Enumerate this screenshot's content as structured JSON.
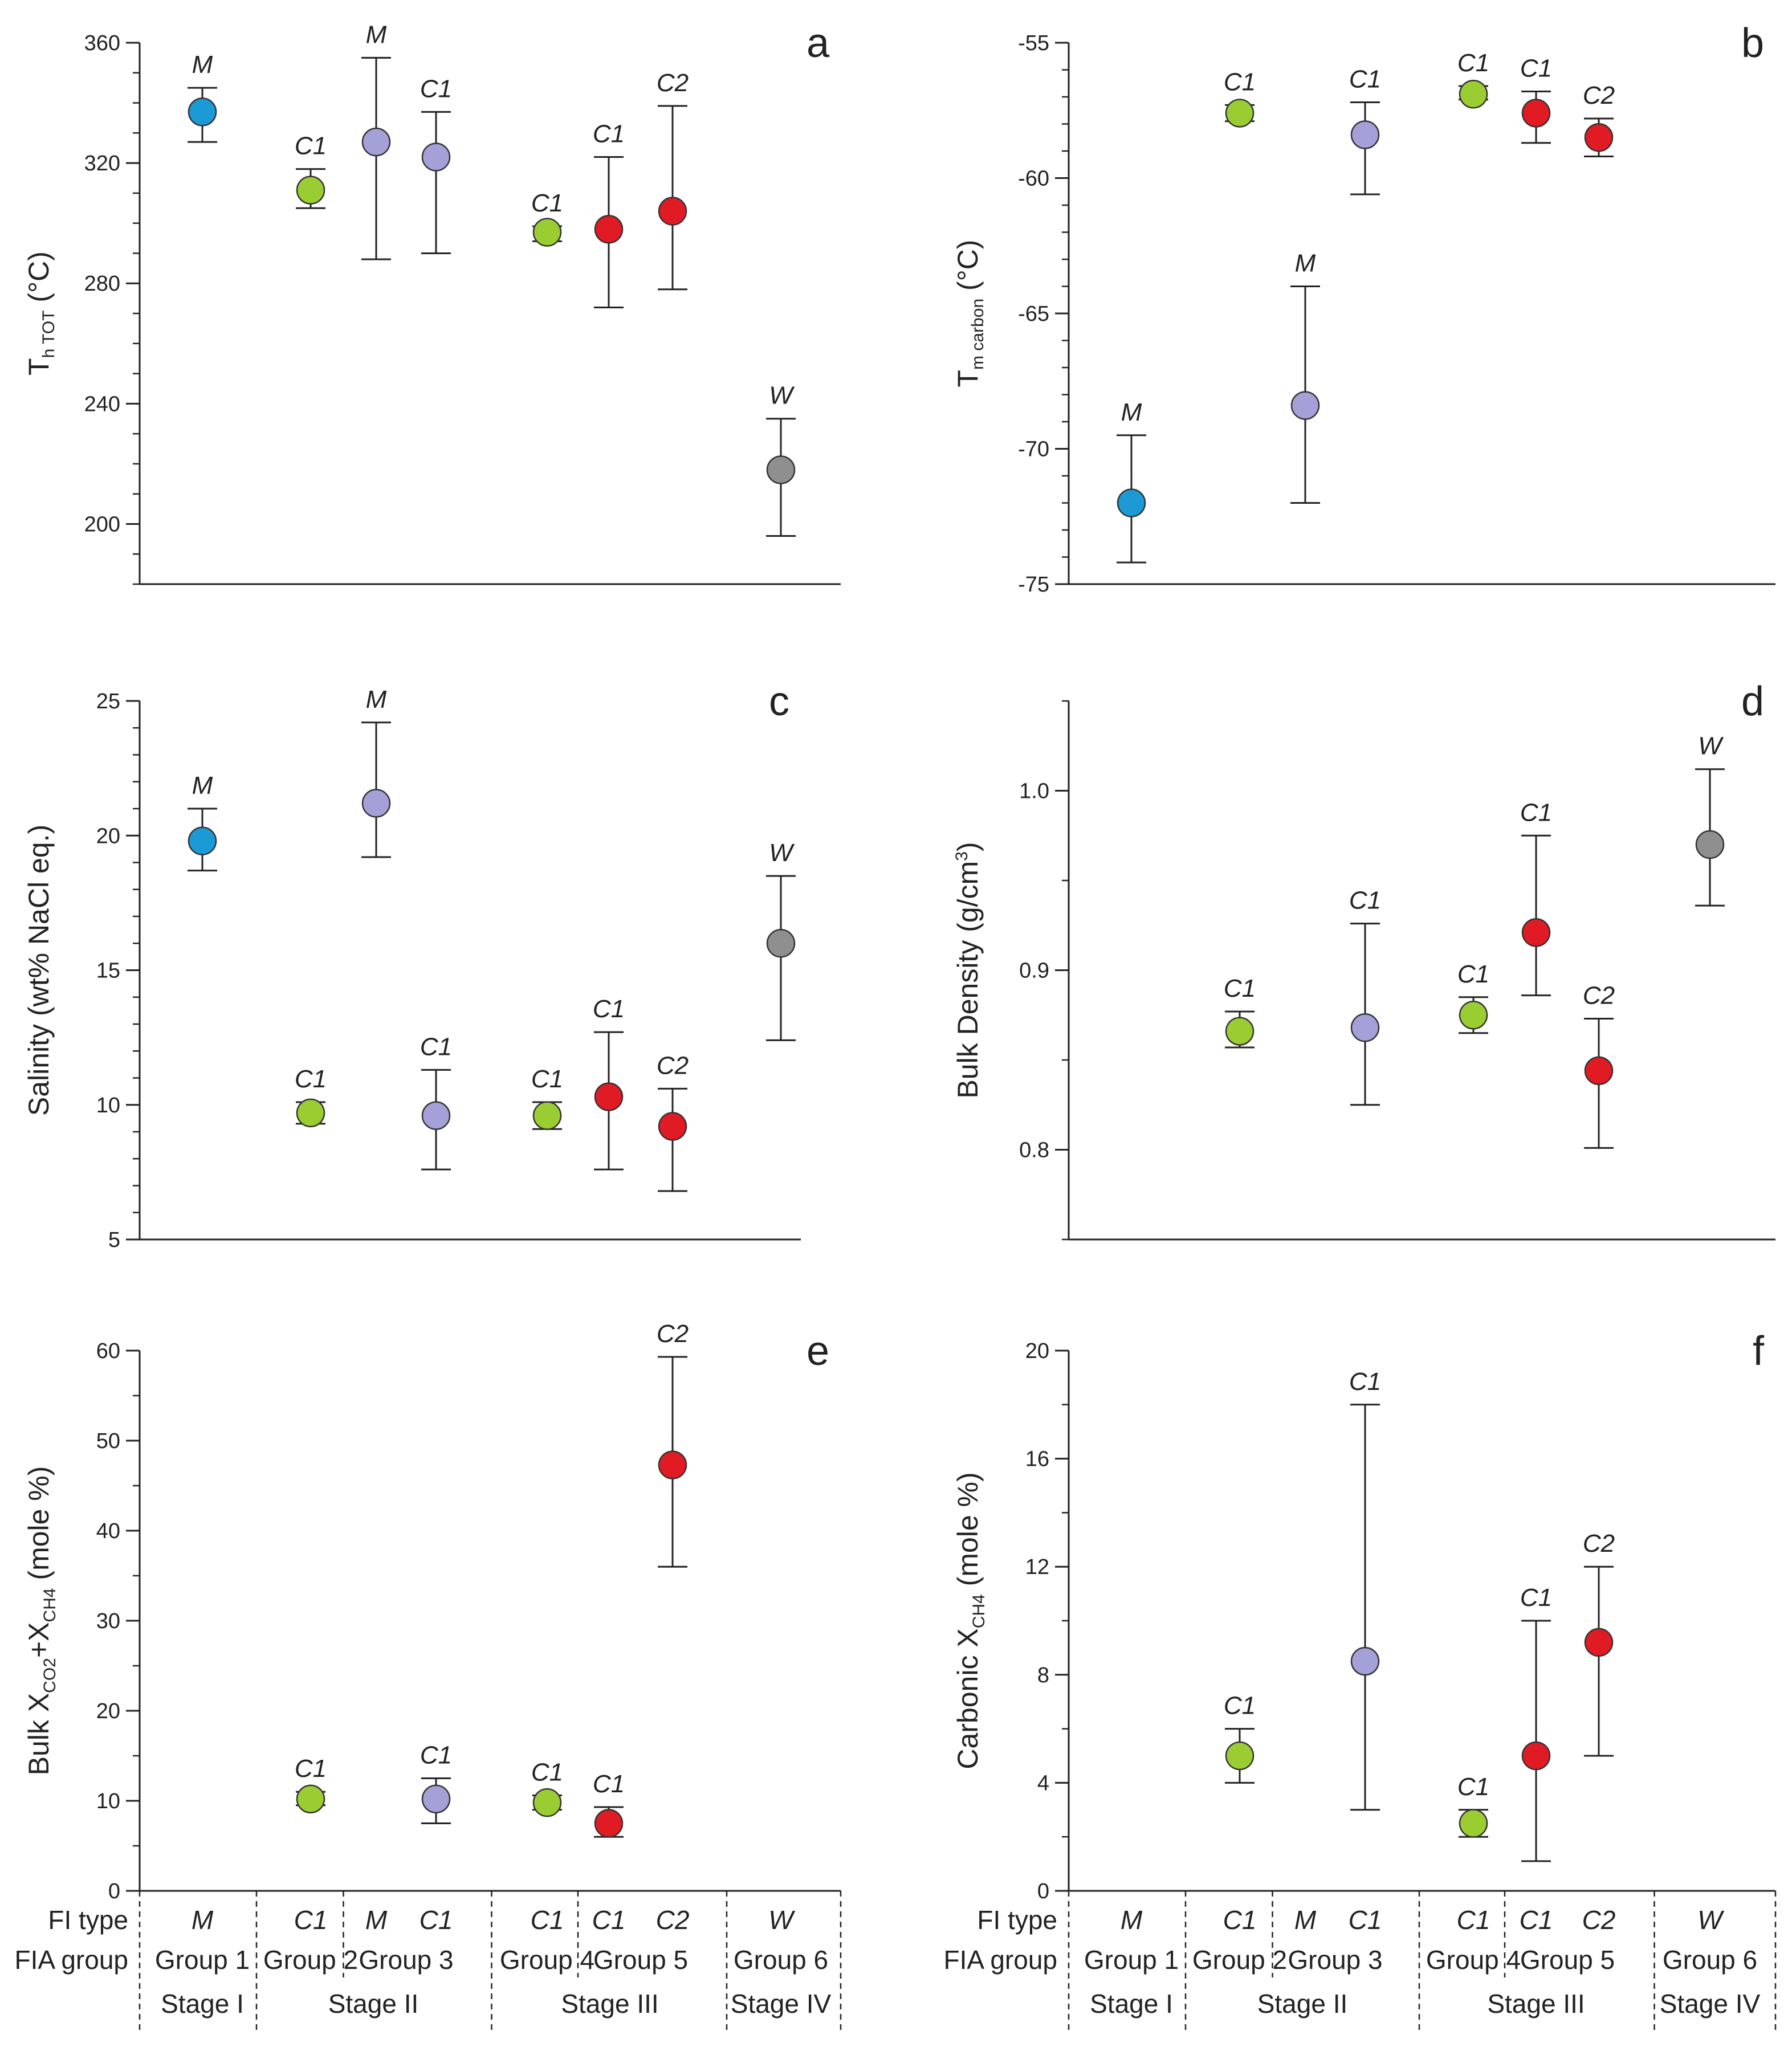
{
  "colors": {
    "M": "#1b9ad6",
    "G2": "#9acd32",
    "G3": "#a3a1d8",
    "G4": "#9acd32",
    "G5": "#e01b24",
    "W": "#8f8f8f"
  },
  "chart_data": [
    {
      "id": "a",
      "type": "scatter",
      "letter": "a",
      "ylabel": "T",
      "ylabel_sub": "h TOT",
      "ylabel_unit": "(°C)",
      "ylim": [
        180,
        360
      ],
      "yticks": [
        200,
        240,
        280,
        320,
        360
      ],
      "minor_step": 10,
      "tick_labels": [
        "200",
        "240",
        "280",
        "320",
        "360"
      ],
      "points": [
        {
          "slot": 0,
          "fi": "M",
          "color": "M",
          "y": 337,
          "lo": 327,
          "hi": 345
        },
        {
          "slot": 1,
          "fi": "C1",
          "color": "G2",
          "y": 311,
          "lo": 305,
          "hi": 318
        },
        {
          "slot": 2,
          "fi": "M",
          "color": "G3",
          "y": 327,
          "lo": 288,
          "hi": 355
        },
        {
          "slot": 3,
          "fi": "C1",
          "color": "G3",
          "y": 322,
          "lo": 290,
          "hi": 337
        },
        {
          "slot": 4,
          "fi": "C1",
          "color": "G4",
          "y": 297,
          "lo": 294,
          "hi": 299
        },
        {
          "slot": 5,
          "fi": "C1",
          "color": "G5",
          "y": 298,
          "lo": 272,
          "hi": 322
        },
        {
          "slot": 6,
          "fi": "C2",
          "color": "G5",
          "y": 304,
          "lo": 278,
          "hi": 339
        },
        {
          "slot": 7,
          "fi": "W",
          "color": "W",
          "y": 218,
          "lo": 196,
          "hi": 235
        }
      ]
    },
    {
      "id": "b",
      "type": "scatter",
      "letter": "b",
      "ylabel": "T",
      "ylabel_sub": "m carbon",
      "ylabel_unit": "(°C)",
      "ylim": [
        -75,
        -55
      ],
      "yticks": [
        -75,
        -70,
        -65,
        -60,
        -55
      ],
      "minor_step": 1,
      "tick_labels": [
        "-75",
        "-70",
        "-65",
        "-60",
        "-55"
      ],
      "points": [
        {
          "slot": 0,
          "fi": "M",
          "color": "M",
          "y": -72,
          "lo": -74.2,
          "hi": -69.5
        },
        {
          "slot": 1,
          "fi": "C1",
          "color": "G2",
          "y": -57.6,
          "lo": -57.9,
          "hi": -57.3
        },
        {
          "slot": 2,
          "fi": "M",
          "color": "G3",
          "y": -68.4,
          "lo": -72,
          "hi": -64
        },
        {
          "slot": 3,
          "fi": "C1",
          "color": "G3",
          "y": -58.4,
          "lo": -60.6,
          "hi": -57.2
        },
        {
          "slot": 4,
          "fi": "C1",
          "color": "G4",
          "y": -56.9,
          "lo": -57.1,
          "hi": -56.6
        },
        {
          "slot": 5,
          "fi": "C1",
          "color": "G5",
          "y": -57.6,
          "lo": -58.7,
          "hi": -56.8
        },
        {
          "slot": 6,
          "fi": "C2",
          "color": "G5",
          "y": -58.5,
          "lo": -59.2,
          "hi": -57.8
        }
      ]
    },
    {
      "id": "c",
      "type": "scatter",
      "letter": "c",
      "ylabel": "Salinity (wt% NaCl eq.)",
      "ylim": [
        5,
        25
      ],
      "yticks": [
        5,
        10,
        15,
        20,
        25
      ],
      "minor_step": 1,
      "tick_labels": [
        "5",
        "10",
        "15",
        "20",
        "25"
      ],
      "points": [
        {
          "slot": 0,
          "fi": "M",
          "color": "M",
          "y": 19.8,
          "lo": 18.7,
          "hi": 21
        },
        {
          "slot": 1,
          "fi": "C1",
          "color": "G2",
          "y": 9.7,
          "lo": 9.3,
          "hi": 10.1
        },
        {
          "slot": 2,
          "fi": "M",
          "color": "G3",
          "y": 21.2,
          "lo": 19.2,
          "hi": 24.2
        },
        {
          "slot": 3,
          "fi": "C1",
          "color": "G3",
          "y": 9.6,
          "lo": 7.6,
          "hi": 11.3
        },
        {
          "slot": 4,
          "fi": "C1",
          "color": "G4",
          "y": 9.6,
          "lo": 9.1,
          "hi": 10.1
        },
        {
          "slot": 5,
          "fi": "C1",
          "color": "G5",
          "y": 10.3,
          "lo": 7.6,
          "hi": 12.7
        },
        {
          "slot": 6,
          "fi": "C2",
          "color": "G5",
          "y": 9.2,
          "lo": 6.8,
          "hi": 10.6
        },
        {
          "slot": 7,
          "fi": "W",
          "color": "W",
          "y": 16,
          "lo": 12.4,
          "hi": 18.5
        }
      ]
    },
    {
      "id": "d",
      "type": "scatter",
      "letter": "d",
      "ylabel": "Bulk Density (g/cm",
      "ylabel_sup": "3",
      "ylabel_end": ")",
      "ylim": [
        0.75,
        1.05
      ],
      "yticks": [
        0.8,
        0.9,
        1.0
      ],
      "minor_step": 0.05,
      "tick_labels": [
        "0.8",
        "0.9",
        "1.0"
      ],
      "points": [
        {
          "slot": 1,
          "fi": "C1",
          "color": "G2",
          "y": 0.866,
          "lo": 0.857,
          "hi": 0.877
        },
        {
          "slot": 3,
          "fi": "C1",
          "color": "G3",
          "y": 0.868,
          "lo": 0.825,
          "hi": 0.926
        },
        {
          "slot": 4,
          "fi": "C1",
          "color": "G4",
          "y": 0.875,
          "lo": 0.865,
          "hi": 0.885
        },
        {
          "slot": 5,
          "fi": "C1",
          "color": "G5",
          "y": 0.921,
          "lo": 0.886,
          "hi": 0.975
        },
        {
          "slot": 6,
          "fi": "C2",
          "color": "G5",
          "y": 0.844,
          "lo": 0.801,
          "hi": 0.873
        },
        {
          "slot": 7,
          "fi": "W",
          "color": "W",
          "y": 0.97,
          "lo": 0.936,
          "hi": 1.012
        }
      ]
    },
    {
      "id": "e",
      "type": "scatter",
      "letter": "e",
      "ylabel": "Bulk  X",
      "ylabel_sub1": "CO2",
      "ylabel_mid": "+X",
      "ylabel_sub2": "CH4",
      "ylabel_unit": " (mole %)",
      "ylim": [
        0,
        60
      ],
      "yticks": [
        0,
        10,
        20,
        30,
        40,
        50,
        60
      ],
      "minor_step": 5,
      "tick_labels": [
        "0",
        "10",
        "20",
        "30",
        "40",
        "50",
        "60"
      ],
      "points": [
        {
          "slot": 1,
          "fi": "C1",
          "color": "G2",
          "y": 10.2,
          "lo": 9.5,
          "hi": 11
        },
        {
          "slot": 3,
          "fi": "C1",
          "color": "G3",
          "y": 10.2,
          "lo": 7.5,
          "hi": 12.5
        },
        {
          "slot": 4,
          "fi": "C1",
          "color": "G4",
          "y": 9.8,
          "lo": 9,
          "hi": 10.6
        },
        {
          "slot": 5,
          "fi": "C1",
          "color": "G5",
          "y": 7.5,
          "lo": 6,
          "hi": 9.3
        },
        {
          "slot": 6,
          "fi": "C2",
          "color": "G5",
          "y": 47.3,
          "lo": 36,
          "hi": 59.3
        }
      ]
    },
    {
      "id": "f",
      "type": "scatter",
      "letter": "f",
      "ylabel": "Carbonic  X",
      "ylabel_sub": "CH4",
      "ylabel_unit": " (mole %)",
      "ylim": [
        0,
        20
      ],
      "yticks": [
        0,
        4,
        8,
        12,
        16,
        20
      ],
      "minor_step": 2,
      "tick_labels": [
        "0",
        "4",
        "8",
        "12",
        "16",
        "20"
      ],
      "points": [
        {
          "slot": 1,
          "fi": "C1",
          "color": "G2",
          "y": 5,
          "lo": 4,
          "hi": 6
        },
        {
          "slot": 3,
          "fi": "C1",
          "color": "G3",
          "y": 8.5,
          "lo": 3,
          "hi": 18
        },
        {
          "slot": 4,
          "fi": "C1",
          "color": "G4",
          "y": 2.5,
          "lo": 2,
          "hi": 3
        },
        {
          "slot": 5,
          "fi": "C1",
          "color": "G5",
          "y": 5,
          "lo": 1.1,
          "hi": 10
        },
        {
          "slot": 6,
          "fi": "C2",
          "color": "G5",
          "y": 9.2,
          "lo": 5,
          "hi": 12
        }
      ]
    }
  ],
  "categories": {
    "row_labels": [
      "FI type",
      "FIA group"
    ],
    "fi_types": [
      "M",
      "C1",
      "M",
      "C1",
      "C1",
      "C1",
      "C2",
      "W"
    ],
    "groups": [
      {
        "label": "Group 1",
        "slots": [
          0
        ]
      },
      {
        "label": "Group 2",
        "slots": [
          1
        ]
      },
      {
        "label": "Group 3",
        "slots": [
          2,
          3
        ]
      },
      {
        "label": "Group 4",
        "slots": [
          4
        ]
      },
      {
        "label": "Group 5",
        "slots": [
          5,
          6
        ]
      },
      {
        "label": "Group 6",
        "slots": [
          7
        ]
      }
    ],
    "stages": [
      {
        "label": "Stage I",
        "slots": [
          0
        ]
      },
      {
        "label": "Stage II",
        "slots": [
          1,
          2,
          3
        ]
      },
      {
        "label": "Stage III",
        "slots": [
          4,
          5,
          6
        ]
      },
      {
        "label": "Stage IV",
        "slots": [
          7
        ]
      }
    ]
  }
}
